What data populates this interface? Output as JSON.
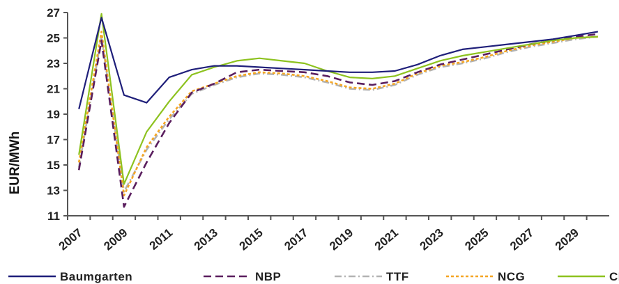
{
  "chart_data": {
    "type": "line",
    "ylabel": "EUR/MWh",
    "ylim": [
      11,
      27
    ],
    "yticks": [
      11,
      13,
      15,
      17,
      19,
      21,
      23,
      25,
      27
    ],
    "xlim": [
      2006.5,
      2030.5
    ],
    "xticks": [
      2007,
      2009,
      2011,
      2013,
      2015,
      2017,
      2019,
      2021,
      2023,
      2025,
      2027,
      2029
    ],
    "xtick_labels": [
      "2007",
      "2009",
      "2011",
      "2013",
      "2015",
      "2017",
      "2019",
      "2021",
      "2023",
      "2025",
      "2027",
      "2029"
    ],
    "x": [
      2007,
      2008,
      2009,
      2010,
      2011,
      2012,
      2013,
      2014,
      2015,
      2016,
      2017,
      2018,
      2019,
      2020,
      2021,
      2022,
      2023,
      2024,
      2025,
      2026,
      2027,
      2028,
      2029,
      2030
    ],
    "legend_position": "bottom",
    "grid": false,
    "series": [
      {
        "name": "Baumgarten",
        "color": "#1f1f7a",
        "dash": "solid",
        "values": [
          19.4,
          26.6,
          20.5,
          19.9,
          21.9,
          22.5,
          22.8,
          22.8,
          22.7,
          22.6,
          22.5,
          22.4,
          22.3,
          22.3,
          22.4,
          22.9,
          23.6,
          24.1,
          24.3,
          24.5,
          24.7,
          24.9,
          25.2,
          25.5
        ]
      },
      {
        "name": "NBP",
        "color": "#5a1e5e",
        "dash": "dash",
        "values": [
          14.6,
          24.8,
          11.7,
          15.2,
          18.3,
          20.7,
          21.4,
          22.3,
          22.5,
          22.4,
          22.3,
          22.0,
          21.5,
          21.3,
          21.6,
          22.3,
          22.9,
          23.3,
          23.7,
          24.1,
          24.5,
          24.8,
          25.1,
          25.3
        ]
      },
      {
        "name": "TTF",
        "color": "#b3b3b3",
        "dash": "dashdot",
        "values": [
          14.8,
          25.1,
          12.9,
          16.2,
          18.6,
          20.6,
          21.3,
          21.9,
          22.2,
          22.1,
          21.9,
          21.5,
          21.0,
          20.9,
          21.3,
          22.1,
          22.7,
          23.0,
          23.4,
          23.9,
          24.3,
          24.6,
          24.9,
          25.1
        ]
      },
      {
        "name": "NCG",
        "color": "#f5a623",
        "dash": "dot",
        "values": [
          15.2,
          25.5,
          12.6,
          16.4,
          18.8,
          20.8,
          21.4,
          22.0,
          22.3,
          22.2,
          22.0,
          21.6,
          21.1,
          21.0,
          21.4,
          22.2,
          22.8,
          23.1,
          23.5,
          24.0,
          24.4,
          24.7,
          25.0,
          25.1
        ]
      },
      {
        "name": "CEGH",
        "color": "#8dc21f",
        "dash": "solid",
        "values": [
          15.8,
          26.9,
          13.5,
          17.6,
          20.0,
          22.1,
          22.7,
          23.2,
          23.4,
          23.2,
          23.0,
          22.4,
          21.9,
          21.8,
          22.0,
          22.6,
          23.2,
          23.6,
          23.9,
          24.2,
          24.5,
          24.8,
          25.0,
          25.1
        ]
      }
    ]
  }
}
